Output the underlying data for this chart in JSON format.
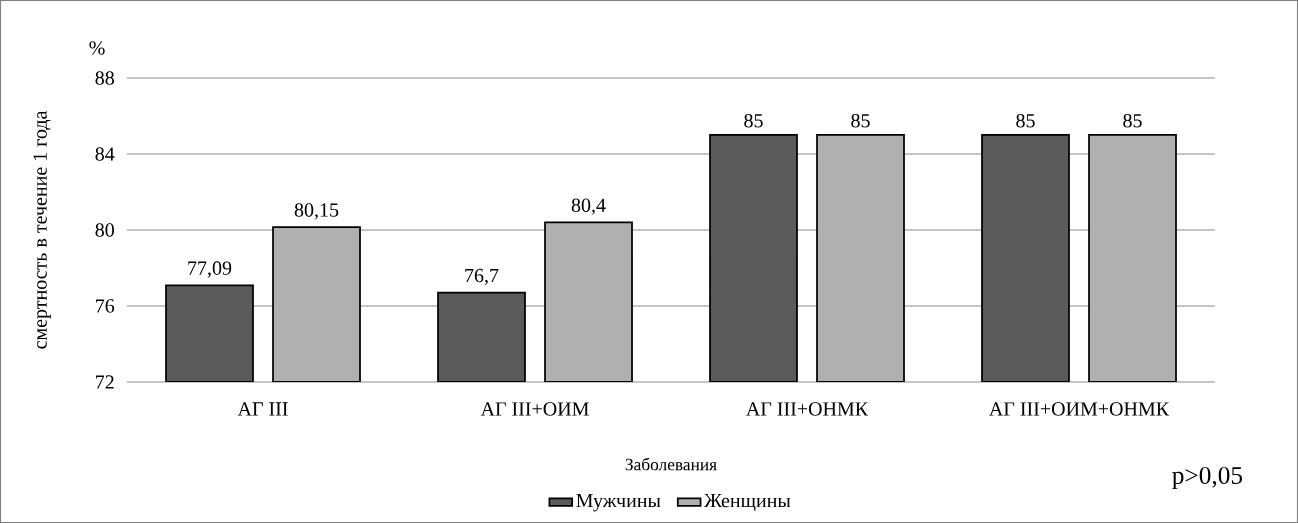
{
  "chart_data": {
    "type": "bar",
    "xlabel": "Заболевания",
    "ylabel": "смертность в течение 1 года",
    "categories": [
      "АГ III",
      "АГ III+ОИМ",
      "АГ III+ОНМК",
      "АГ III+ОИМ+ОНМК"
    ],
    "series": [
      {
        "name": "Мужчины",
        "color": "#5a5a5a",
        "values": [
          77.09,
          76.7,
          85,
          85
        ],
        "value_labels": [
          "77,09",
          "76,7",
          "85",
          "85"
        ]
      },
      {
        "name": "Женщины",
        "color": "#b0b0b0",
        "values": [
          80.15,
          80.4,
          85,
          85
        ],
        "value_labels": [
          "80,15",
          "80,4",
          "85",
          "85"
        ]
      }
    ],
    "ylim": [
      72,
      88
    ],
    "yticks": [
      72,
      76,
      80,
      84,
      88
    ],
    "grid": "y",
    "legend": "bottom",
    "annotations": [
      "%",
      "p>0,05"
    ]
  }
}
